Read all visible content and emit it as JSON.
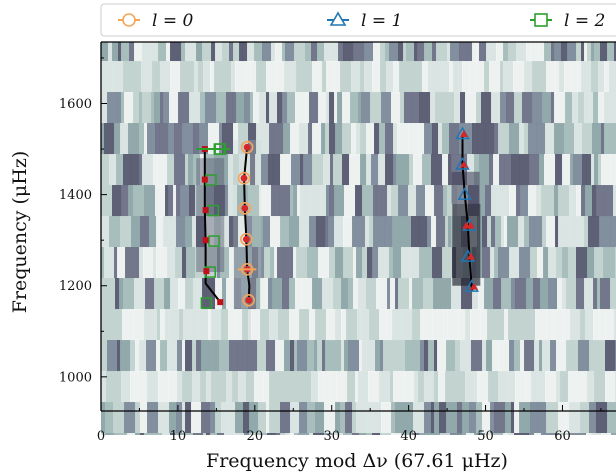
{
  "chart_data": {
    "type": "scatter",
    "xlabel": "Frequency mod Δν (67.61 μHz)",
    "ylabel": "Frequency (μHz)",
    "xlim": [
      0,
      67.61
    ],
    "ylim": [
      925,
      1750
    ],
    "x_ticks": [
      0,
      10,
      20,
      30,
      40,
      50,
      60
    ],
    "y_ticks": [
      1000,
      1200,
      1400,
      1600
    ],
    "x_tick_labels": [
      "0",
      "10",
      "20",
      "30",
      "40",
      "50",
      "60"
    ],
    "y_tick_labels": [
      "1000",
      "1200",
      "1400",
      "1600"
    ],
    "grid": false,
    "legend_position": "top",
    "background": "echelle-diagram grayscale power map",
    "legend": [
      {
        "label": "l = 0",
        "marker": "circle",
        "color": "#f5a55a"
      },
      {
        "label": "l = 1",
        "marker": "triangle",
        "color": "#1f77b4"
      },
      {
        "label": "l = 2",
        "marker": "square",
        "color": "#2ca02c"
      }
    ],
    "series": [
      {
        "name": "l = 0",
        "color": "#f5a55a",
        "x": [
          19.2,
          19.0,
          18.9,
          18.7,
          18.6,
          19.0
        ],
        "y": [
          1168,
          1236,
          1302,
          1370,
          1436,
          1504
        ]
      },
      {
        "name": "l = 1",
        "color": "#1f77b4",
        "x": [
          48.2,
          47.7,
          47.9,
          47.3,
          47.0,
          47.0
        ],
        "y": [
          1198,
          1264,
          1332,
          1400,
          1466,
          1533
        ]
      },
      {
        "name": "l = 2",
        "color": "#2ca02c",
        "x": [
          13.7,
          14.2,
          14.7,
          14.6,
          14.3,
          15.5
        ],
        "y": [
          1162,
          1230,
          1298,
          1365,
          1432,
          1500
        ]
      }
    ],
    "fit_lines": [
      {
        "x": [
          19.2,
          19.3,
          19.0,
          18.9,
          18.7,
          18.6,
          19.0
        ],
        "y": [
          1168,
          1200,
          1236,
          1302,
          1370,
          1436,
          1504
        ]
      },
      {
        "x": [
          48.3,
          48.2,
          47.9,
          47.7,
          47.3,
          47.0,
          47.0
        ],
        "y": [
          1190,
          1198,
          1264,
          1332,
          1400,
          1466,
          1533
        ]
      },
      {
        "x": [
          15.5,
          13.6,
          13.6,
          13.6,
          13.5,
          13.5,
          13.5
        ],
        "y": [
          1164,
          1205,
          1232,
          1300,
          1366,
          1433,
          1500
        ]
      }
    ],
    "model_points": {
      "l0": {
        "x": [
          19.2,
          19.0,
          18.9,
          18.7,
          18.6,
          19.0
        ],
        "y": [
          1168,
          1236,
          1302,
          1370,
          1436,
          1504
        ],
        "color": "#d62728"
      },
      "l1": {
        "x": [
          48.3,
          47.9,
          47.9,
          47.3,
          47.0,
          47.0
        ],
        "y": [
          1198,
          1264,
          1332,
          1332,
          1466,
          1533
        ],
        "color": "#d62728"
      },
      "l2": {
        "x": [
          15.5,
          13.7,
          13.6,
          13.6,
          13.5,
          13.5
        ],
        "y": [
          1164,
          1232,
          1300,
          1366,
          1433,
          1500
        ],
        "color": "#c0101a"
      }
    },
    "error_bars": {
      "l0": {
        "x": [
          19.0
        ],
        "y": [
          1236
        ],
        "xerr": [
          1.2
        ]
      },
      "l2": {
        "x": [
          14.6
        ],
        "y": [
          1500
        ],
        "xerr": [
          2.2
        ]
      }
    }
  }
}
